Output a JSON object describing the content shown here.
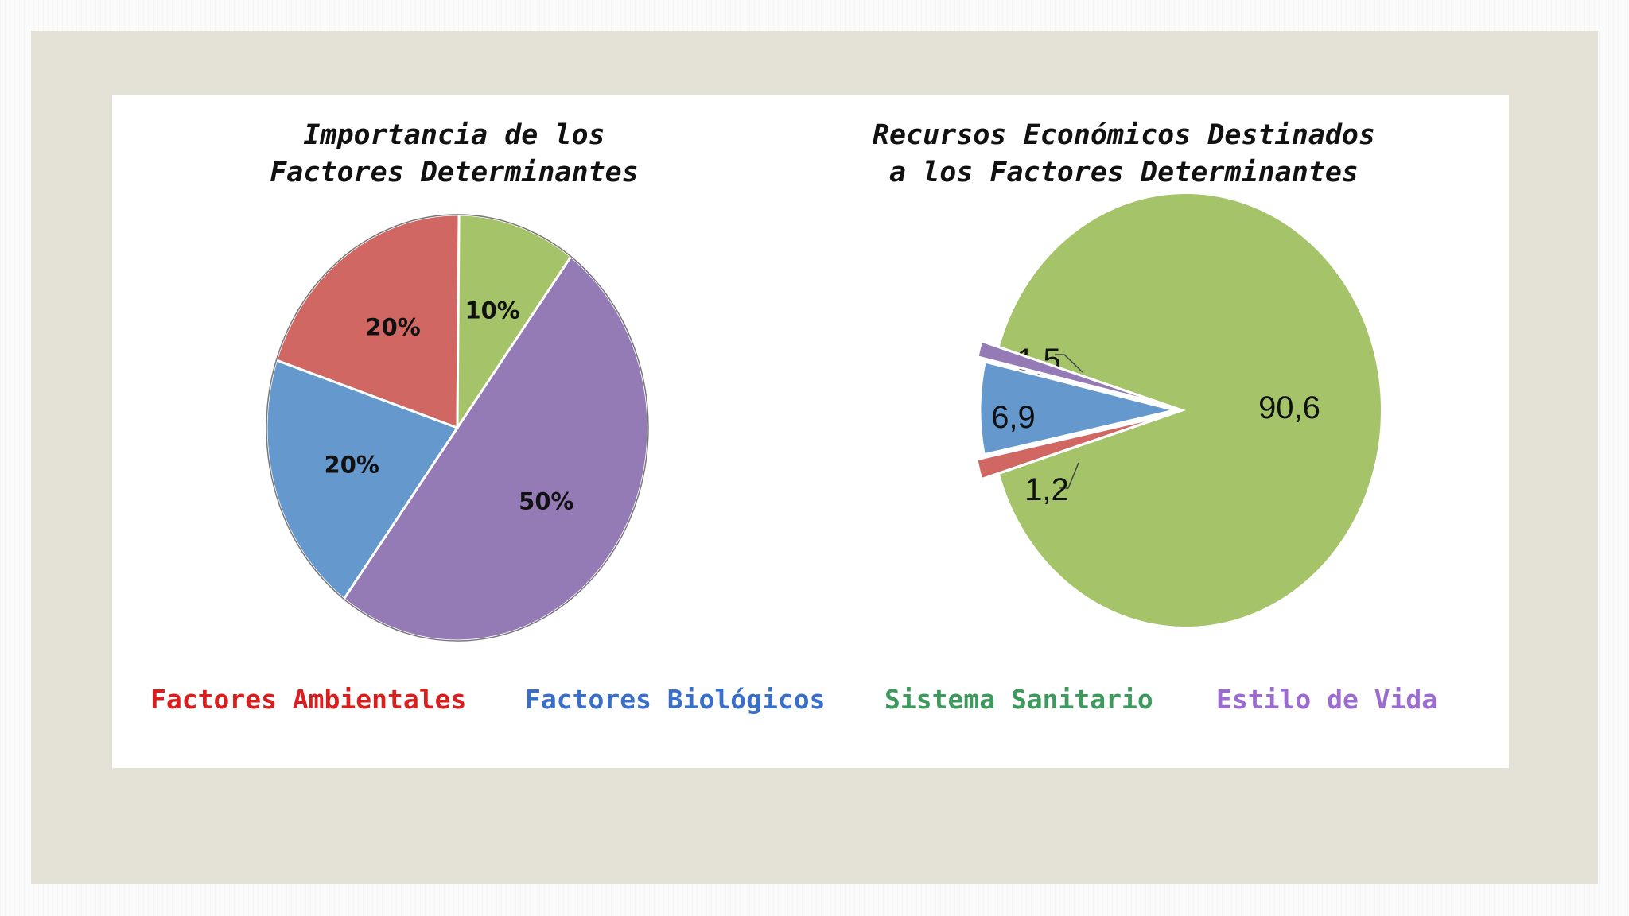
{
  "chart_data": [
    {
      "type": "pie",
      "title": [
        "Importancia de los",
        "Factores Determinantes"
      ],
      "slices": [
        {
          "name": "Estilo de Vida",
          "value": 50,
          "label": "50%",
          "color": "#957bb6"
        },
        {
          "name": "Factores Biológicos",
          "value": 20,
          "label": "20%",
          "color": "#6598cd"
        },
        {
          "name": "Factores Ambientales",
          "value": 20,
          "label": "20%",
          "color": "#d16762"
        },
        {
          "name": "Sistema Sanitario",
          "value": 10,
          "label": "10%",
          "color": "#a5c46a"
        }
      ]
    },
    {
      "type": "pie",
      "title": [
        "Recursos Económicos Destinados",
        "a los Factores Determinantes"
      ],
      "slices": [
        {
          "name": "Sistema Sanitario",
          "value": 90.6,
          "label": "90,6",
          "color": "#a5c46a"
        },
        {
          "name": "Factores Biológicos",
          "value": 6.9,
          "label": "6,9",
          "color": "#6598cd"
        },
        {
          "name": "Factores Ambientales",
          "value": 1.5,
          "label": "1,5",
          "color": "#d16762"
        },
        {
          "name": "Estilo de Vida",
          "value": 1.2,
          "label": "1,2",
          "color": "#957bb6"
        }
      ]
    }
  ],
  "legend": [
    {
      "label": "Factores Ambientales",
      "color": "#d91e1e"
    },
    {
      "label": "Factores Biológicos",
      "color": "#3a6fc9"
    },
    {
      "label": "Sistema Sanitario",
      "color": "#3d9a5c"
    },
    {
      "label": "Estilo de Vida",
      "color": "#9b6bd0"
    }
  ]
}
